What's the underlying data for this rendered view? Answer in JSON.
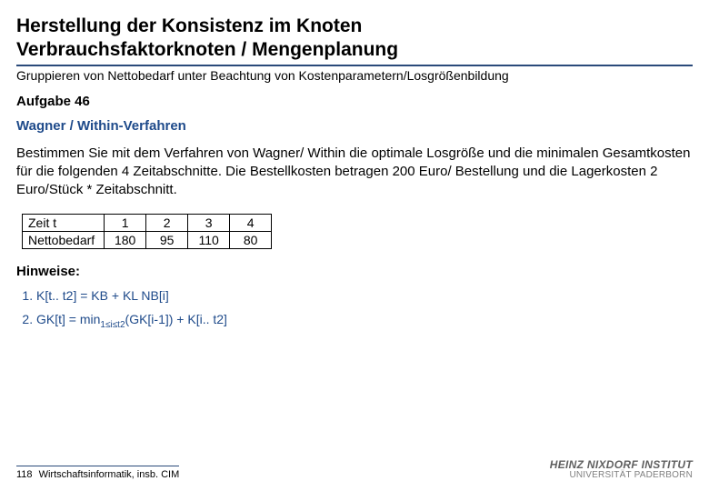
{
  "title_line1": "Herstellung der Konsistenz im Knoten",
  "title_line2": "Verbrauchsfaktorknoten / Mengenplanung",
  "subtitle": "Gruppieren von Nettobedarf unter Beachtung von Kostenparametern/Losgrößenbildung",
  "task_label": "Aufgabe 46",
  "method_label": "Wagner / Within-Verfahren",
  "body_text": "Bestimmen  Sie mit dem Verfahren von Wagner/ Within die optimale Losgröße und die minimalen Gesamtkosten für die folgenden 4 Zeitabschnitte. Die Bestellkosten betragen 200 Euro/ Bestellung und die Lagerkosten 2 Euro/Stück * Zeitabschnitt.",
  "table": {
    "row1_label": "Zeit t",
    "row2_label": "Nettobedarf",
    "cols": [
      "1",
      "2",
      "3",
      "4"
    ],
    "values": [
      "180",
      "95",
      "110",
      "80"
    ]
  },
  "hints_label": "Hinweise:",
  "hint1_pre": "K[t.. t2] = KB + KL NB[i]",
  "hint2_a": "GK[t] = min",
  "hint2_sub": "1≤i≤t2",
  "hint2_b": "(GK[i-1]) + K[i.. t2]",
  "footer": {
    "page": "118",
    "dept": "Wirtschaftsinformatik, insb. CIM",
    "institute": "HEINZ NIXDORF INSTITUT",
    "university": "UNIVERSITÄT PADERBORN"
  }
}
